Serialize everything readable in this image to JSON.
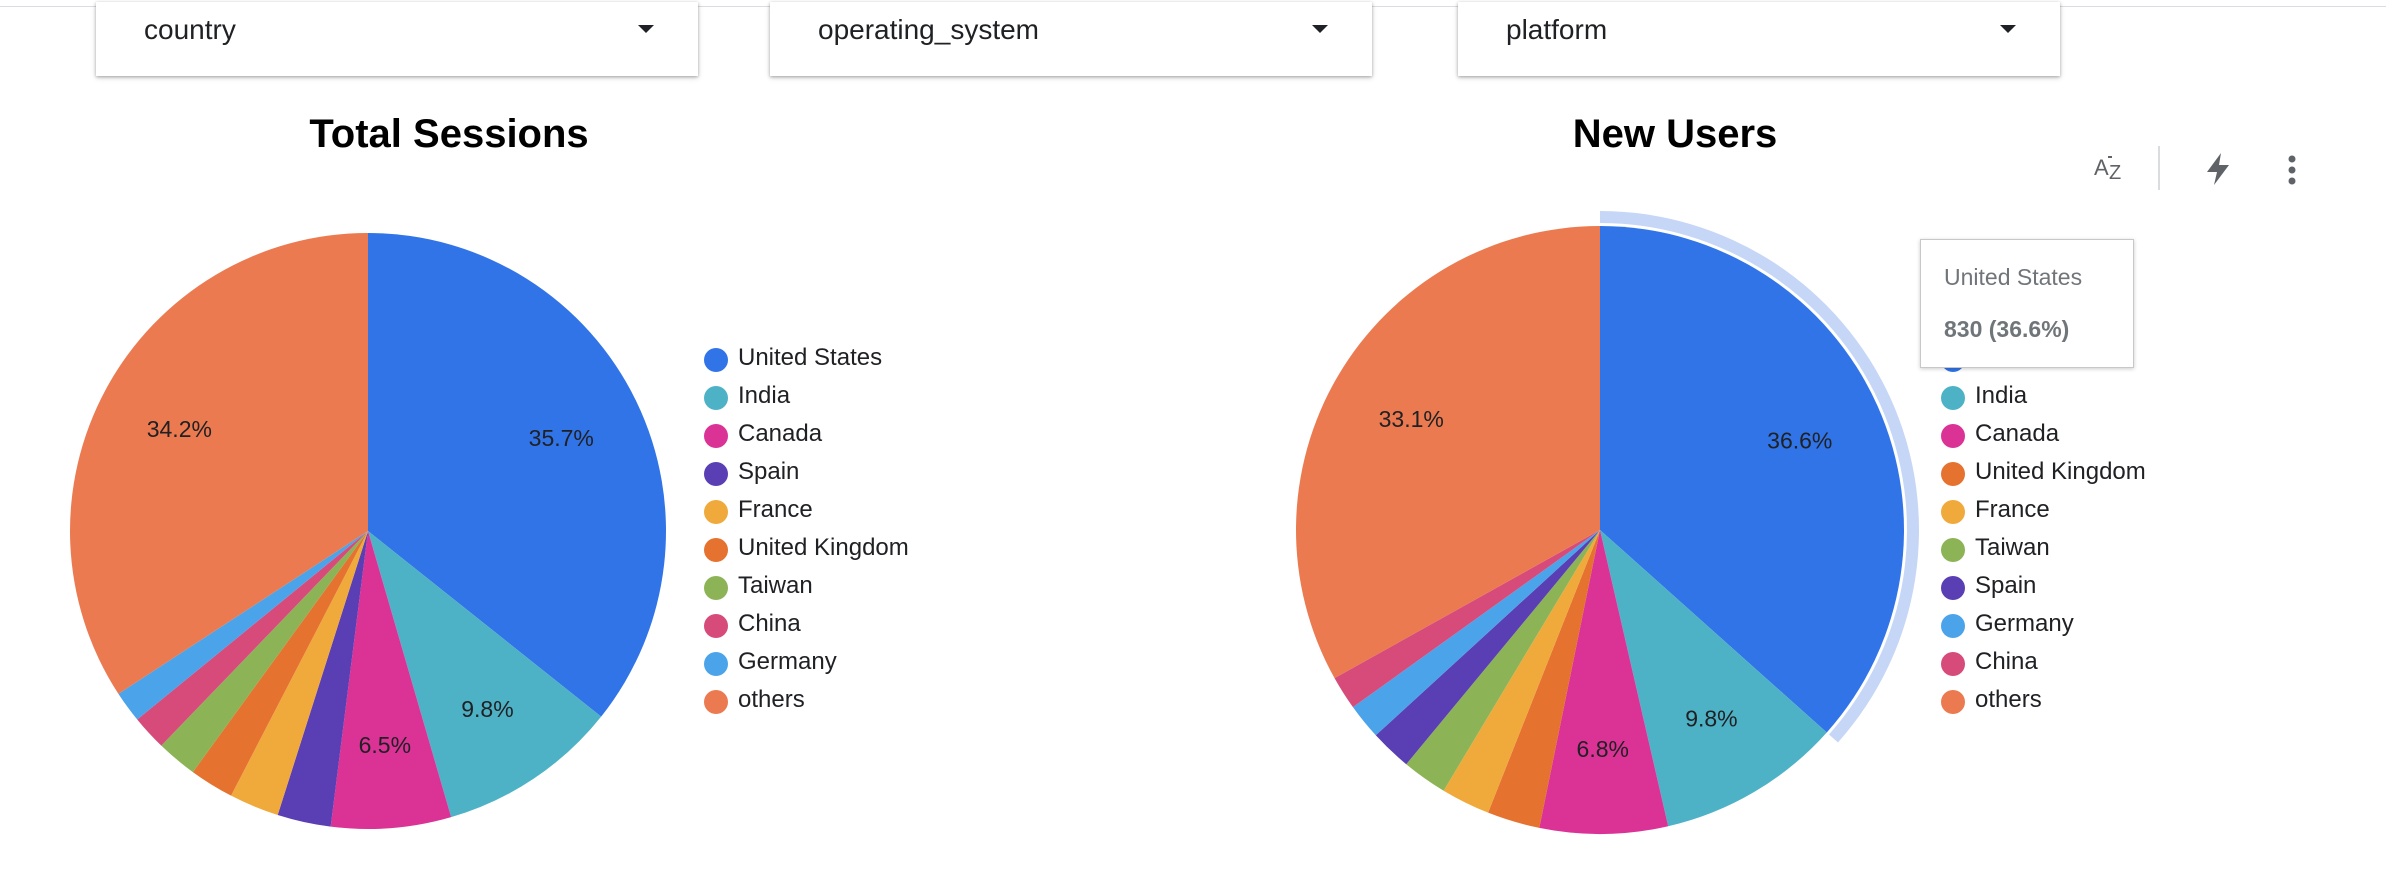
{
  "filters": [
    {
      "label": "country"
    },
    {
      "label": "operating_system"
    },
    {
      "label": "platform"
    }
  ],
  "toolbar": {
    "sort_icon": "sort-az-icon",
    "insights_icon": "bolt-icon",
    "menu_icon": "more-vert-icon"
  },
  "tooltip": {
    "name": "United States",
    "value": "830 (36.6%)"
  },
  "chart_data": [
    {
      "type": "pie",
      "title": "Total Sessions",
      "legend": "right",
      "slices": [
        {
          "label": "United States",
          "value": 35.7,
          "color": "#3174e8",
          "pct_label": "35.7%"
        },
        {
          "label": "India",
          "value": 9.8,
          "color": "#4eb2c6",
          "pct_label": "9.8%"
        },
        {
          "label": "Canada",
          "value": 6.5,
          "color": "#db3296",
          "pct_label": "6.5%"
        },
        {
          "label": "Spain",
          "value": 2.9,
          "color": "#5a3eb4",
          "pct_label": ""
        },
        {
          "label": "France",
          "value": 2.7,
          "color": "#f0aa3c",
          "pct_label": ""
        },
        {
          "label": "United Kingdom",
          "value": 2.4,
          "color": "#e5722f",
          "pct_label": ""
        },
        {
          "label": "Taiwan",
          "value": 2.2,
          "color": "#8cb456",
          "pct_label": ""
        },
        {
          "label": "China",
          "value": 1.9,
          "color": "#d64b7a",
          "pct_label": ""
        },
        {
          "label": "Germany",
          "value": 1.7,
          "color": "#4ba3ea",
          "pct_label": ""
        },
        {
          "label": "others",
          "value": 34.2,
          "color": "#ec7a50",
          "pct_label": "34.2%"
        }
      ]
    },
    {
      "type": "pie",
      "title": "New Users",
      "legend": "right",
      "highlighted": "United States",
      "slices": [
        {
          "label": "United States",
          "value": 36.6,
          "color": "#3174e8",
          "pct_label": "36.6%"
        },
        {
          "label": "India",
          "value": 9.8,
          "color": "#4eb2c6",
          "pct_label": "9.8%"
        },
        {
          "label": "Canada",
          "value": 6.8,
          "color": "#db3296",
          "pct_label": "6.8%"
        },
        {
          "label": "United Kingdom",
          "value": 2.8,
          "color": "#e5722f",
          "pct_label": ""
        },
        {
          "label": "France",
          "value": 2.6,
          "color": "#f0aa3c",
          "pct_label": ""
        },
        {
          "label": "Taiwan",
          "value": 2.4,
          "color": "#8cb456",
          "pct_label": ""
        },
        {
          "label": "Spain",
          "value": 2.2,
          "color": "#5a3eb4",
          "pct_label": ""
        },
        {
          "label": "Germany",
          "value": 1.9,
          "color": "#4ba3ea",
          "pct_label": ""
        },
        {
          "label": "China",
          "value": 1.8,
          "color": "#d64b7a",
          "pct_label": ""
        },
        {
          "label": "others",
          "value": 33.1,
          "color": "#ec7a50",
          "pct_label": "33.1%"
        }
      ]
    }
  ]
}
